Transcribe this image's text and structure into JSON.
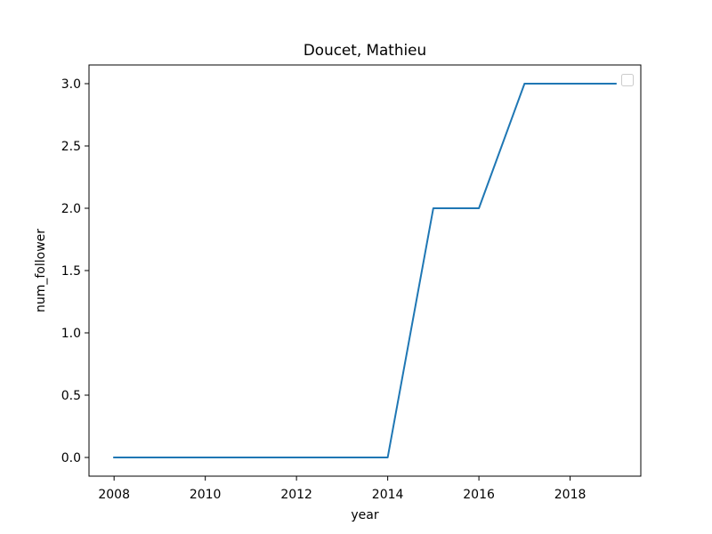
{
  "chart_data": {
    "type": "line",
    "title": "Doucet, Mathieu",
    "xlabel": "year",
    "ylabel": "num_follower",
    "xlim": [
      2007.45,
      2019.55
    ],
    "ylim": [
      -0.15,
      3.15
    ],
    "x_ticks": [
      2008,
      2010,
      2012,
      2014,
      2016,
      2018
    ],
    "x_tick_labels": [
      "2008",
      "2010",
      "2012",
      "2014",
      "2016",
      "2018"
    ],
    "y_ticks": [
      0.0,
      0.5,
      1.0,
      1.5,
      2.0,
      2.5,
      3.0
    ],
    "y_tick_labels": [
      "0.0",
      "0.5",
      "1.0",
      "1.5",
      "2.0",
      "2.5",
      "3.0"
    ],
    "grid": false,
    "legend": {
      "position": "top-right",
      "entries": []
    },
    "series": [
      {
        "color": "#1f77b4",
        "x": [
          2008,
          2009,
          2010,
          2011,
          2012,
          2013,
          2014,
          2015,
          2016,
          2017,
          2018,
          2019
        ],
        "y": [
          0,
          0,
          0,
          0,
          0,
          0,
          0,
          2,
          2,
          3,
          3,
          3
        ]
      }
    ]
  }
}
